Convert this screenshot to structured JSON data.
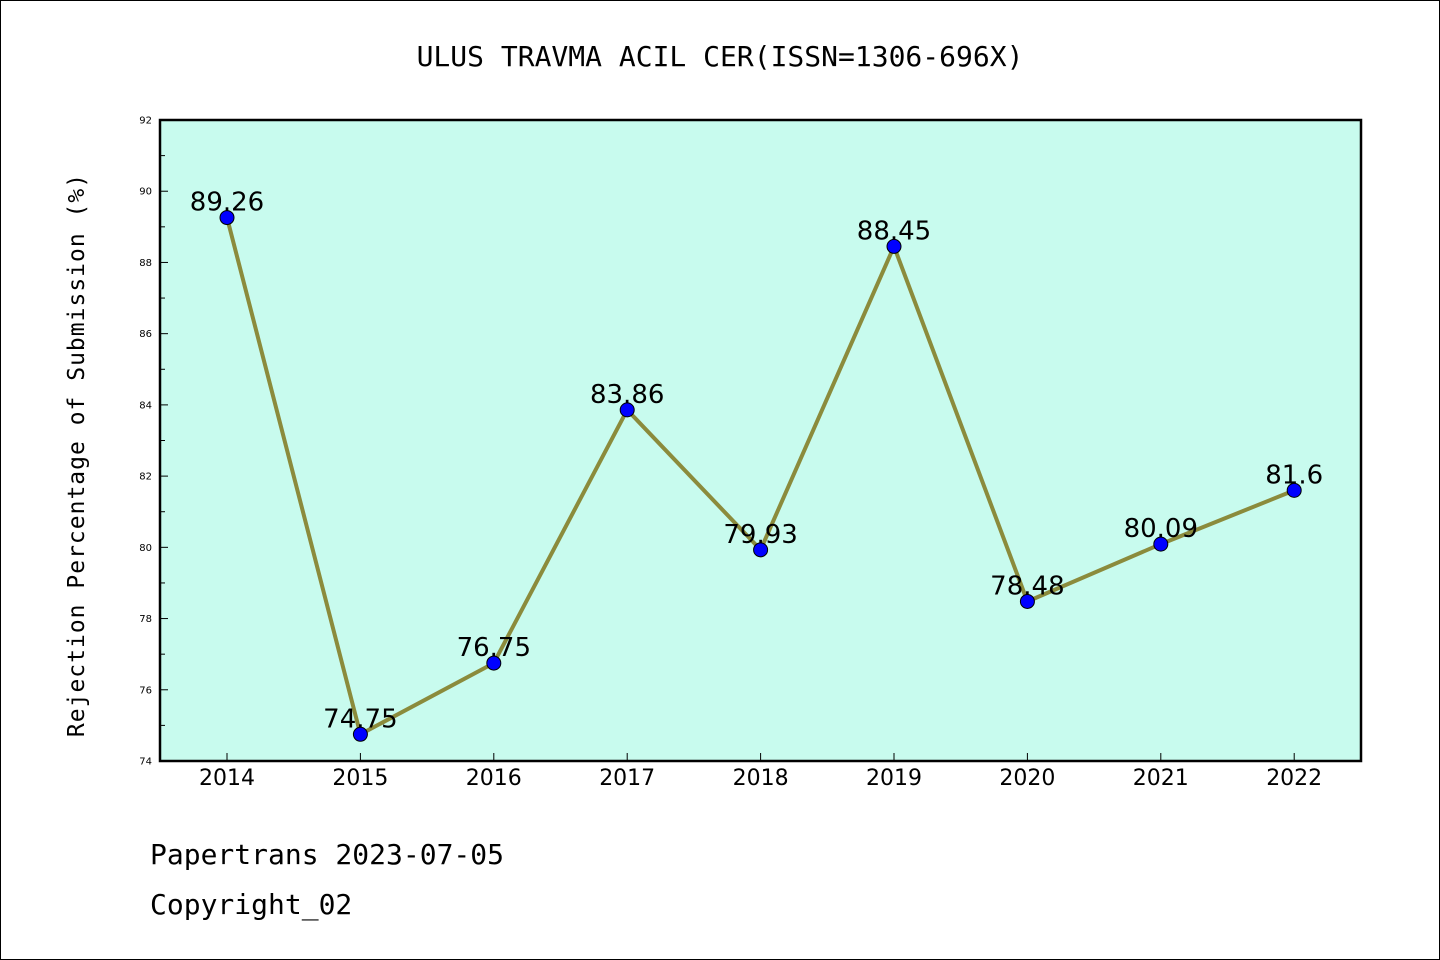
{
  "chart_data": {
    "type": "line",
    "title": "ULUS TRAVMA ACIL CER(ISSN=1306-696X)",
    "xlabel": "",
    "ylabel": "Rejection Percentage of Submission (%)",
    "categories": [
      "2014",
      "2015",
      "2016",
      "2017",
      "2018",
      "2019",
      "2020",
      "2021",
      "2022"
    ],
    "series": [
      {
        "values": [
          89.26,
          74.75,
          76.75,
          83.86,
          79.93,
          88.45,
          78.48,
          80.09,
          81.6
        ],
        "labels": [
          "89.26",
          "74.75",
          "76.75",
          "83.86",
          "79.93",
          "88.45",
          "78.48",
          "80.09",
          "81.6"
        ]
      }
    ],
    "ylim": [
      74,
      92
    ],
    "yticks": [
      "74",
      "76",
      "78",
      "80",
      "82",
      "84",
      "86",
      "88",
      "90",
      "92"
    ],
    "grid": false,
    "colors": {
      "plot_background": "#c8fbee",
      "line": "#8b8b3c",
      "marker": "#0000ff"
    }
  },
  "footer": {
    "line1": "Papertrans 2023-07-05",
    "line2": "Copyright_02"
  }
}
